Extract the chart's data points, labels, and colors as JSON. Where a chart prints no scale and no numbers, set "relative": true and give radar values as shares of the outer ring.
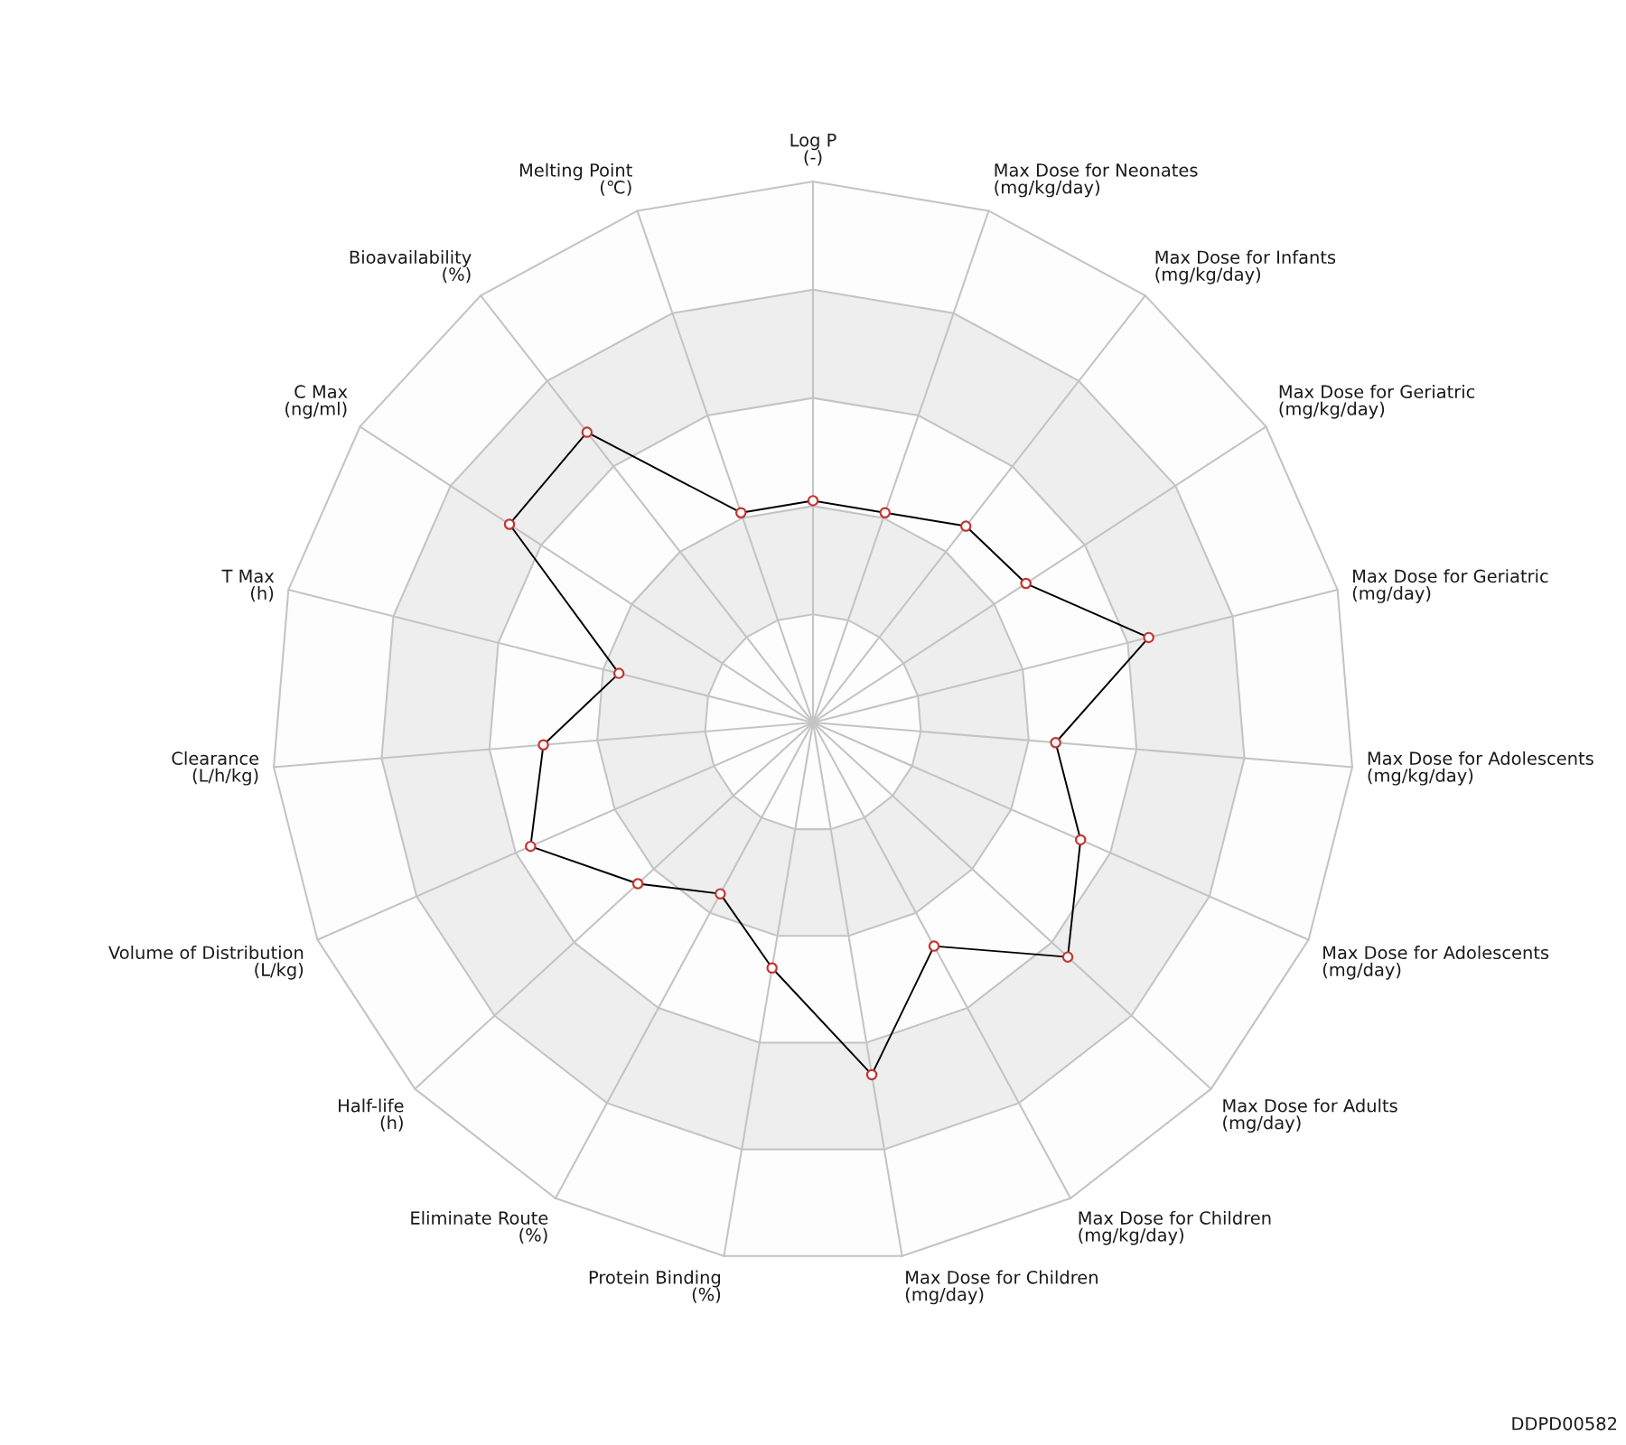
{
  "chart_data": {
    "type": "radar",
    "relative": true,
    "categories": [
      "Log P\n(-)",
      "Max Dose for Neonates\n(mg/kg/day)",
      "Max Dose for Infants\n(mg/kg/day)",
      "Max Dose for Geriatric\n(mg/kg/day)",
      "Max Dose for Geriatric\n(mg/day)",
      "Max Dose for Adolescents\n(mg/kg/day)",
      "Max Dose for Adolescents\n(mg/day)",
      "Max Dose for Adults\n(mg/day)",
      "Max Dose for Children\n(mg/kg/day)",
      "Max Dose for Children\n(mg/day)",
      "Protein Binding\n(%)",
      "Eliminate Route\n(%)",
      "Half-life\n(h)",
      "Volume of Distribution\n(L/kg)",
      "Clearance\n(L/h/kg)",
      "T Max\n(h)",
      "C Max\n(ng/ml)",
      "Bioavailability\n(%)",
      "Melting Point\n(℃)"
    ],
    "series": [
      {
        "color": "#000000",
        "colors": [
          "#c23531",
          "#c23531",
          "#c23531",
          "#c23531",
          "#c23531",
          "#c23531",
          "#c23531",
          "#c23531",
          "#c23531",
          "#c23531",
          "#c23531",
          "#c23531",
          "#c23531",
          "#c23531",
          "#c23531",
          "#c23531",
          "#c23531",
          "#c23531",
          "#c23531"
        ],
        "values": [
          0.41,
          0.41,
          0.46,
          0.47,
          0.64,
          0.45,
          0.54,
          0.64,
          0.47,
          0.66,
          0.46,
          0.36,
          0.44,
          0.57,
          0.5,
          0.37,
          0.67,
          0.68,
          0.41
        ]
      }
    ],
    "marker": "circle",
    "line_style": "solid",
    "grid": true,
    "annotations": [
      "DDPD00582"
    ]
  }
}
